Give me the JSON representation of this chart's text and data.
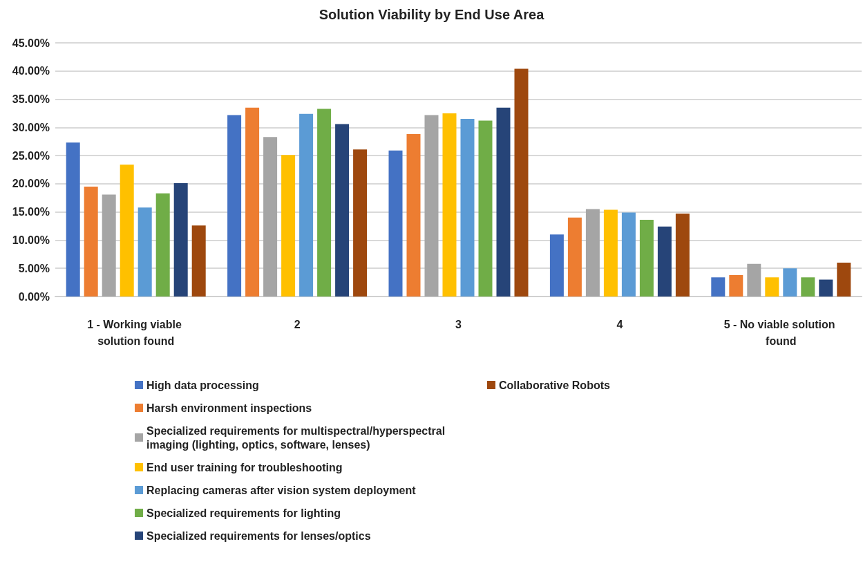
{
  "chart_data": {
    "type": "bar",
    "title": "Solution Viability by End Use Area",
    "categories": [
      "1 - Working viable solution found",
      "2",
      "3",
      "4",
      "5 - No viable solution found"
    ],
    "series": [
      {
        "name": "High data processing",
        "color": "#4472c4",
        "values": [
          27.3,
          32.2,
          25.9,
          11.0,
          3.4
        ]
      },
      {
        "name": "Harsh environment inspections",
        "color": "#ed7d31",
        "values": [
          19.5,
          33.5,
          28.8,
          14.0,
          3.8
        ]
      },
      {
        "name": "Specialized requirements for multispectral/hyperspectral imaging (lighting, optics, software, lenses)",
        "color": "#a5a5a5",
        "values": [
          18.1,
          28.3,
          32.2,
          15.5,
          5.8
        ]
      },
      {
        "name": "End user training for troubleshooting",
        "color": "#ffc000",
        "values": [
          23.4,
          25.1,
          32.5,
          15.4,
          3.4
        ]
      },
      {
        "name": "Replacing cameras after vision system deployment",
        "color": "#5b9bd5",
        "values": [
          15.8,
          32.4,
          31.5,
          14.9,
          5.0
        ]
      },
      {
        "name": "Specialized requirements for lighting",
        "color": "#70ad47",
        "values": [
          18.3,
          33.3,
          31.2,
          13.6,
          3.4
        ]
      },
      {
        "name": "Specialized requirements for lenses/optics",
        "color": "#264478",
        "values": [
          20.1,
          30.6,
          33.5,
          12.4,
          3.0
        ]
      },
      {
        "name": "Collaborative Robots",
        "color": "#9e480e",
        "values": [
          12.6,
          26.1,
          40.4,
          14.7,
          6.0
        ]
      }
    ],
    "ylim": [
      0,
      45
    ],
    "yticks": [
      {
        "value": 0,
        "label": "0.00%"
      },
      {
        "value": 5,
        "label": "5.00%"
      },
      {
        "value": 10,
        "label": "10.00%"
      },
      {
        "value": 15,
        "label": "15.00%"
      },
      {
        "value": 20,
        "label": "20.00%"
      },
      {
        "value": 25,
        "label": "25.00%"
      },
      {
        "value": 30,
        "label": "30.00%"
      },
      {
        "value": 35,
        "label": "35.00%"
      },
      {
        "value": 40,
        "label": "40.00%"
      },
      {
        "value": 45,
        "label": "45.00%"
      }
    ],
    "grid": "y",
    "legend": "bottom"
  }
}
